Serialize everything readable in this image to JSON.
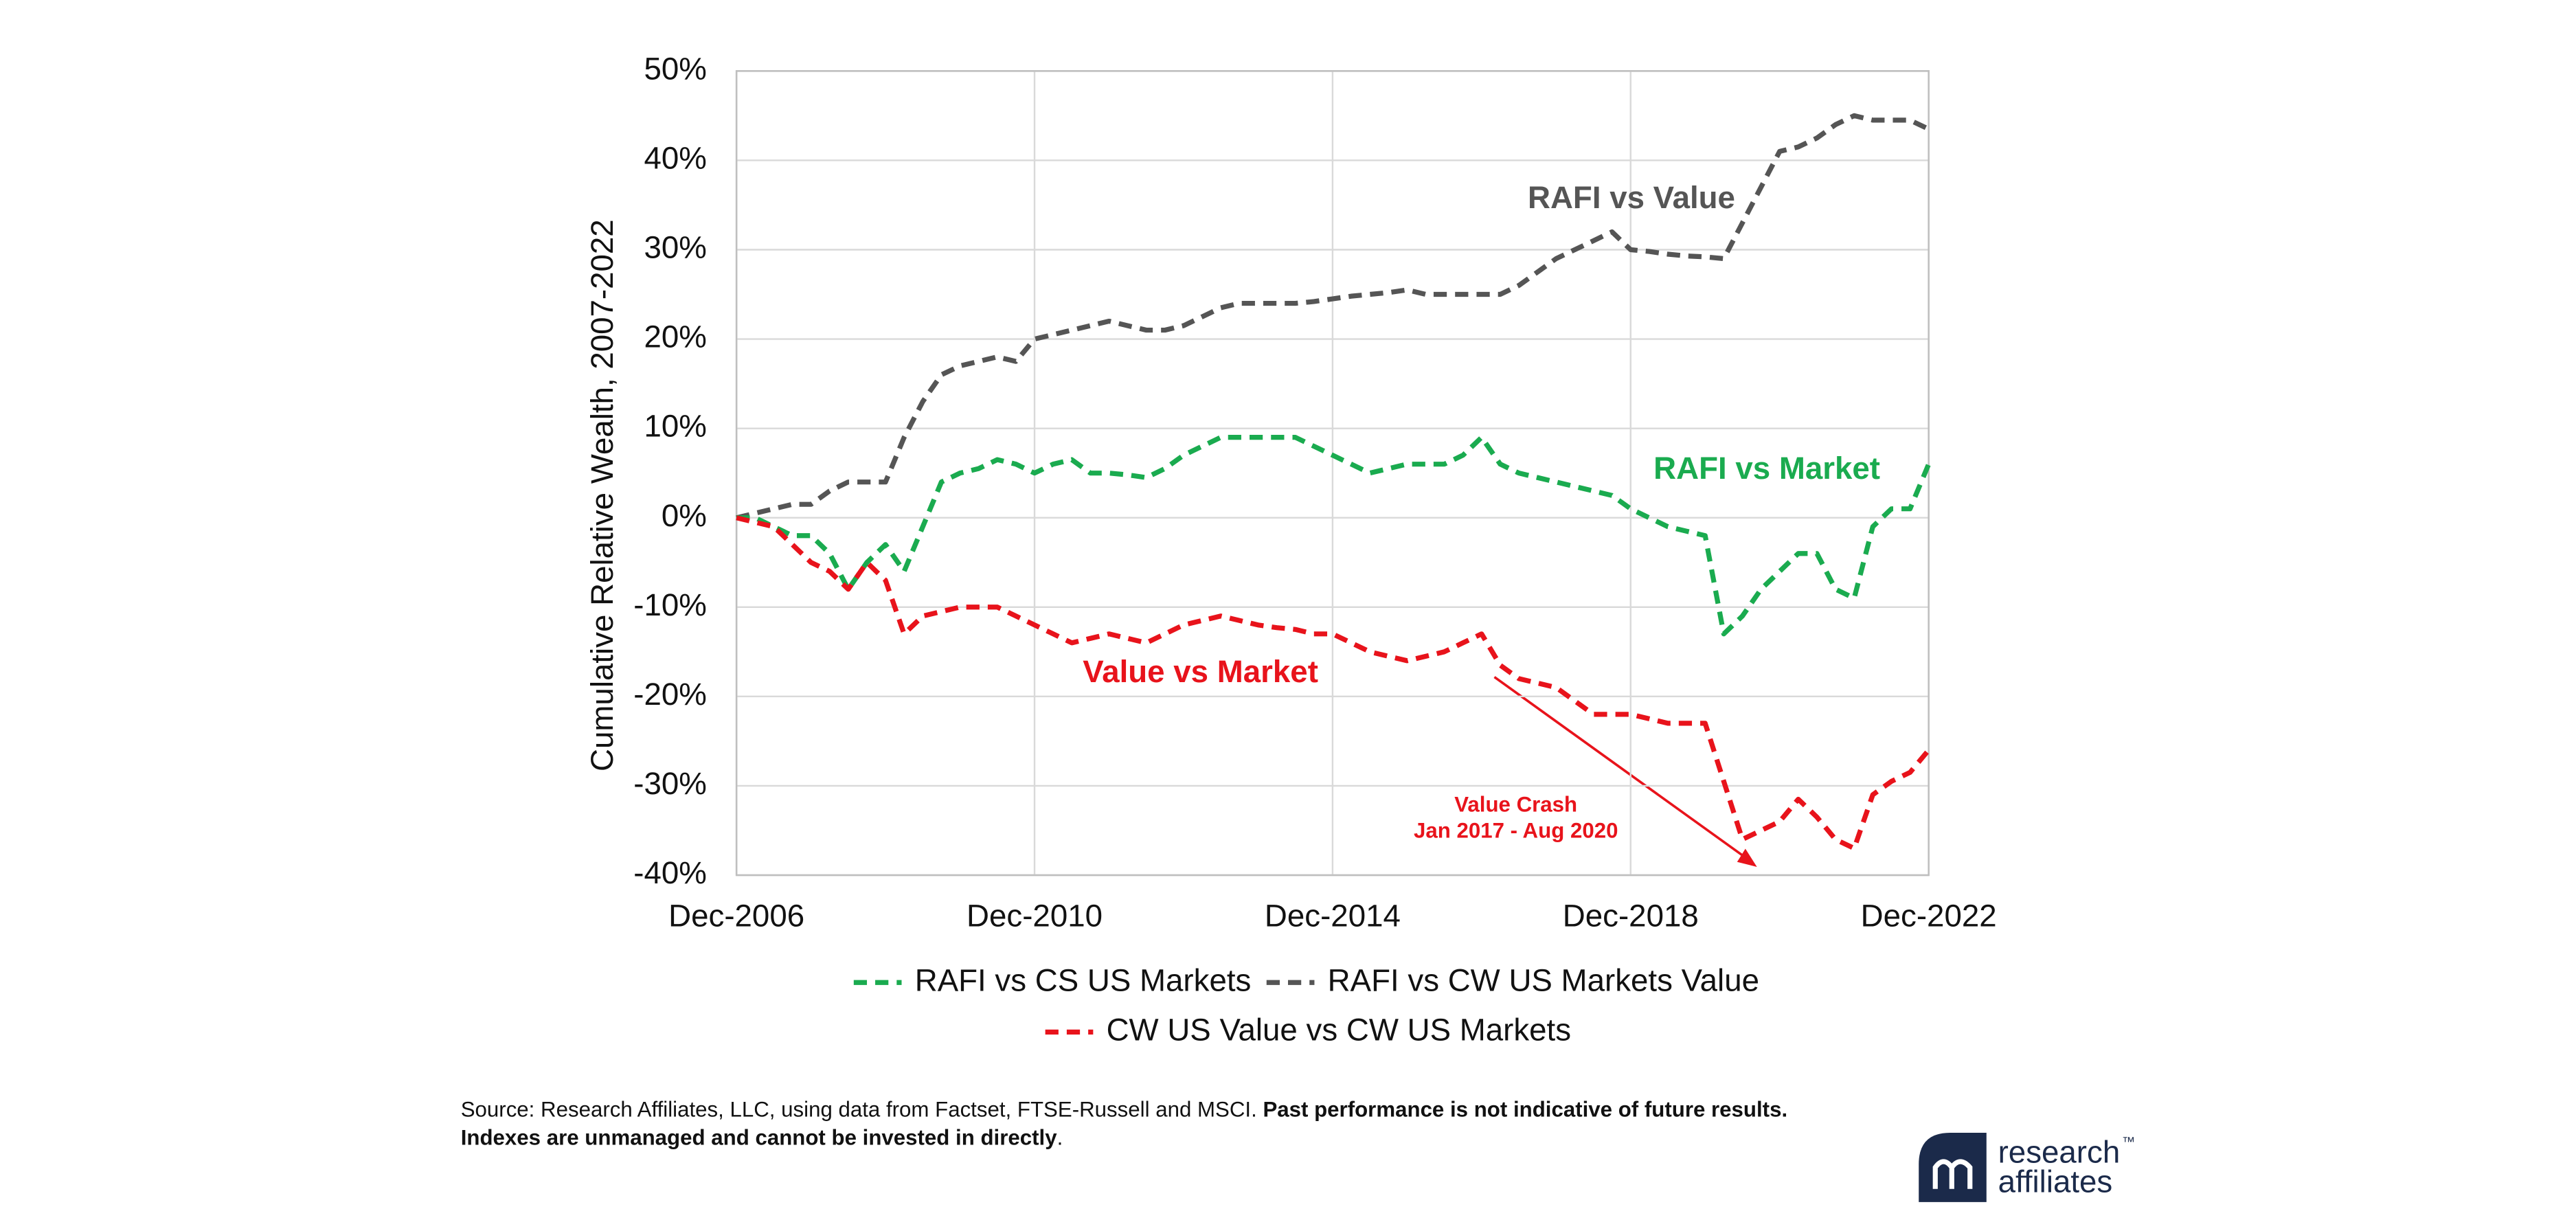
{
  "chart_data": {
    "type": "line",
    "y_label": "Cumulative Relative Wealth, 2007-2022",
    "x": [
      "Dec-2006",
      "Mar-2007",
      "Jun-2007",
      "Sep-2007",
      "Dec-2007",
      "Mar-2008",
      "Jun-2008",
      "Sep-2008",
      "Dec-2008",
      "Mar-2009",
      "Jun-2009",
      "Sep-2009",
      "Dec-2009",
      "Mar-2010",
      "Jun-2010",
      "Sep-2010",
      "Dec-2010",
      "Mar-2011",
      "Jun-2011",
      "Sep-2011",
      "Dec-2011",
      "Mar-2012",
      "Jun-2012",
      "Sep-2012",
      "Dec-2012",
      "Mar-2013",
      "Jun-2013",
      "Sep-2013",
      "Dec-2013",
      "Mar-2014",
      "Jun-2014",
      "Sep-2014",
      "Dec-2014",
      "Mar-2015",
      "Jun-2015",
      "Sep-2015",
      "Dec-2015",
      "Mar-2016",
      "Jun-2016",
      "Sep-2016",
      "Dec-2016",
      "Mar-2017",
      "Jun-2017",
      "Sep-2017",
      "Dec-2017",
      "Mar-2018",
      "Jun-2018",
      "Sep-2018",
      "Dec-2018",
      "Mar-2019",
      "Jun-2019",
      "Sep-2019",
      "Dec-2019",
      "Mar-2020",
      "Jun-2020",
      "Sep-2020",
      "Dec-2020",
      "Mar-2021",
      "Jun-2021",
      "Sep-2021",
      "Dec-2021",
      "Mar-2022",
      "Jun-2022",
      "Sep-2022",
      "Dec-2022"
    ],
    "xlim": [
      "Dec-2006",
      "Dec-2022"
    ],
    "xticks": [
      "Dec-2006",
      "Dec-2010",
      "Dec-2014",
      "Dec-2018",
      "Dec-2022"
    ],
    "ylim": [
      -40,
      50
    ],
    "yticks": [
      {
        "value": -40,
        "label": "-40%"
      },
      {
        "value": -30,
        "label": "-30%"
      },
      {
        "value": -20,
        "label": "-20%"
      },
      {
        "value": -10,
        "label": "-10%"
      },
      {
        "value": 0,
        "label": "0%"
      },
      {
        "value": 10,
        "label": "10%"
      },
      {
        "value": 20,
        "label": "20%"
      },
      {
        "value": 30,
        "label": "30%"
      },
      {
        "value": 40,
        "label": "40%"
      },
      {
        "value": 50,
        "label": "50%"
      }
    ],
    "grid": true,
    "legend": "bottom",
    "series": [
      {
        "name": "RAFI vs CS US Markets",
        "color": "#1aab4f",
        "values": [
          0,
          0,
          -1,
          -2,
          -2,
          -4,
          -8,
          -5,
          -3,
          -6,
          -1,
          4,
          5,
          5.5,
          6.5,
          6,
          5,
          6,
          6.5,
          5,
          5,
          4.8,
          4.5,
          5.5,
          7,
          8,
          9,
          9,
          9,
          9,
          9,
          8,
          7,
          6,
          5,
          5.5,
          6,
          6,
          6,
          7,
          9,
          6,
          5,
          4.5,
          4,
          3.5,
          3,
          2.5,
          1,
          0,
          -1,
          -1.5,
          -2,
          -13,
          -11,
          -8,
          -6,
          -4,
          -4,
          -8,
          -9,
          -1,
          1,
          1,
          6
        ]
      },
      {
        "name": "RAFI vs CW US Markets Value",
        "color": "#555555",
        "values": [
          0,
          0.5,
          1,
          1.5,
          1.5,
          3,
          4,
          4,
          4,
          9,
          13,
          16,
          17,
          17.5,
          18,
          17.5,
          20,
          20.5,
          21,
          21.5,
          22,
          21.5,
          21,
          21,
          21.5,
          22.5,
          23.5,
          24,
          24,
          24,
          24,
          24.2,
          24.5,
          24.8,
          25,
          25.2,
          25.5,
          25,
          25,
          25,
          25,
          25,
          26,
          27.5,
          29,
          30,
          31,
          32,
          30,
          29.8,
          29.5,
          29.3,
          29.2,
          29,
          33,
          37,
          41,
          41.5,
          42.5,
          44,
          45,
          44.5,
          44.5,
          44.5,
          43.5
        ]
      },
      {
        "name": "CW US Value vs CW US Markets",
        "color": "#e8131b",
        "values": [
          0,
          -0.5,
          -1,
          -3,
          -5,
          -6,
          -8,
          -5,
          -7,
          -13,
          -11,
          -10.5,
          -10,
          -10,
          -10,
          -11,
          -12,
          -13,
          -14,
          -13.5,
          -13,
          -13.5,
          -14,
          -13,
          -12,
          -11.5,
          -11,
          -11.5,
          -12,
          -12.3,
          -12.5,
          -13,
          -13,
          -14,
          -15,
          -15.5,
          -16,
          -15.5,
          -15,
          -14,
          -13,
          -16.5,
          -18,
          -18.5,
          -19,
          -20.5,
          -22,
          -22,
          -22,
          -22.5,
          -23,
          -23,
          -23,
          -29.5,
          -36,
          -35,
          -34,
          -31.5,
          -33.5,
          -36,
          -37,
          -31,
          -29.5,
          -28.5,
          -26
        ]
      }
    ],
    "annotations": [
      {
        "text": "RAFI vs Value",
        "color": "#555555"
      },
      {
        "text": "RAFI vs Market",
        "color": "#1aab4f"
      },
      {
        "text": "Value vs Market",
        "color": "#e8131b"
      },
      {
        "text": "Value Crash",
        "color": "#e8131b"
      },
      {
        "text": "Jan 2017 - Aug 2020",
        "color": "#e8131b"
      }
    ]
  },
  "footnote": {
    "line1": "Source: Research Affiliates, LLC, using data from Factset, FTSE-Russell and MSCI.",
    "line1_bold": "Past performance is not indicative of future results.",
    "line2_bold": "Indexes are unmanaged and cannot be invested in directly",
    "line2_end": "."
  },
  "logo": {
    "line1": "research",
    "line2": "affiliates",
    "mark": "™"
  }
}
